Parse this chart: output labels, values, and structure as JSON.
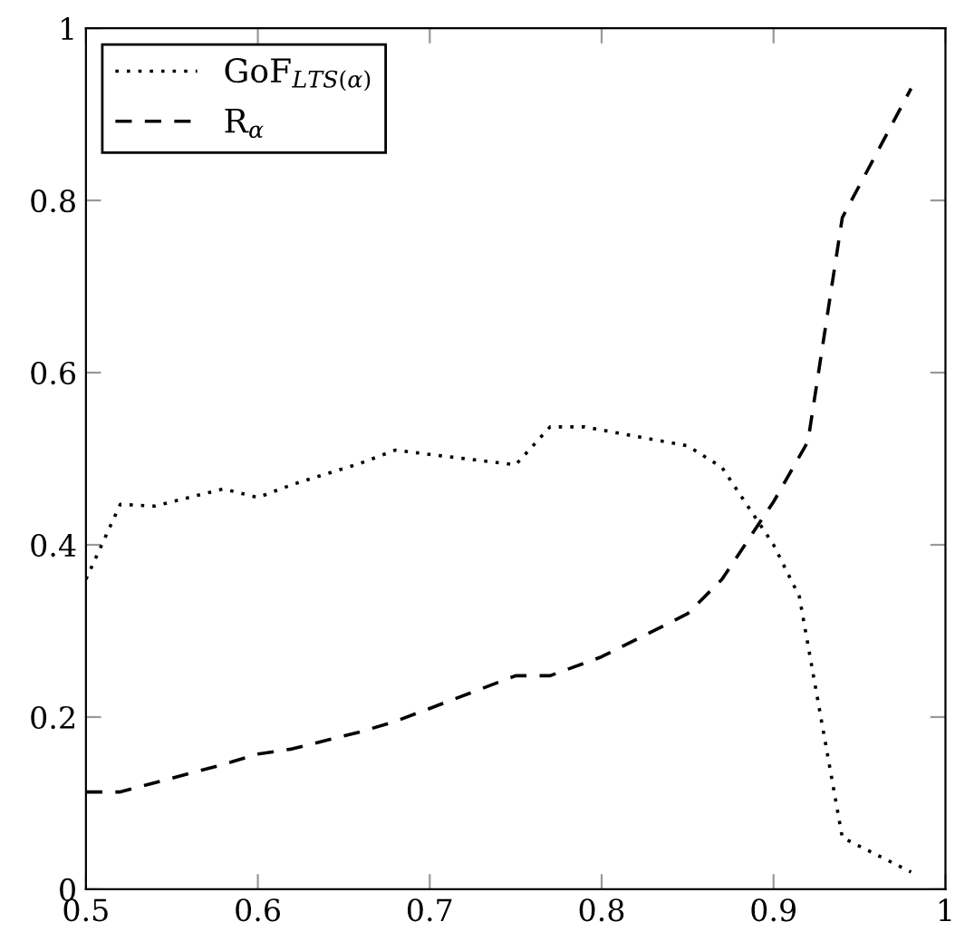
{
  "chart_data": {
    "type": "line",
    "xlim": [
      0.5,
      1
    ],
    "ylim": [
      0,
      1
    ],
    "xticks": [
      0.5,
      0.6,
      0.7,
      0.8,
      0.9,
      1
    ],
    "yticks": [
      0,
      0.2,
      0.4,
      0.6,
      0.8,
      1
    ],
    "grid": false,
    "legend": "top left",
    "marker": "none",
    "series": [
      {
        "name": "GoF$_{LTS(α)}$",
        "color": "#000000",
        "line_style": "dotted",
        "x": [
          0.5,
          0.52,
          0.54,
          0.58,
          0.6,
          0.62,
          0.66,
          0.68,
          0.7,
          0.75,
          0.77,
          0.79,
          0.85,
          0.87,
          0.9,
          0.915,
          0.94,
          0.98
        ],
        "values": [
          0.36,
          0.447,
          0.445,
          0.465,
          0.455,
          0.47,
          0.495,
          0.51,
          0.505,
          0.493,
          0.537,
          0.537,
          0.515,
          0.49,
          0.4,
          0.34,
          0.06,
          0.02
        ]
      },
      {
        "name": "R$_{α}$",
        "color": "#000000",
        "line_style": "dashed",
        "x": [
          0.5,
          0.52,
          0.58,
          0.6,
          0.62,
          0.66,
          0.68,
          0.7,
          0.75,
          0.77,
          0.8,
          0.85,
          0.87,
          0.9,
          0.92,
          0.94,
          0.98
        ],
        "values": [
          0.113,
          0.113,
          0.145,
          0.157,
          0.163,
          0.183,
          0.195,
          0.21,
          0.248,
          0.248,
          0.27,
          0.32,
          0.36,
          0.45,
          0.52,
          0.78,
          0.93
        ]
      }
    ]
  }
}
